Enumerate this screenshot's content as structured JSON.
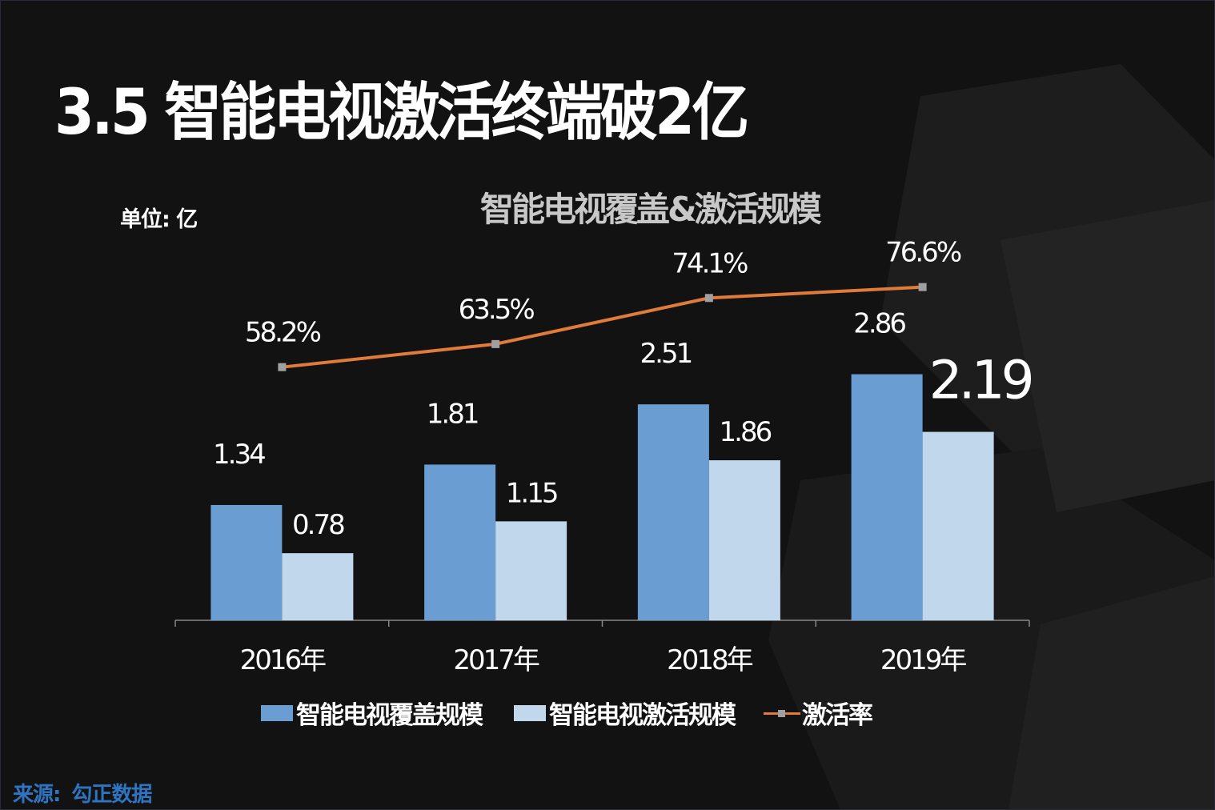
{
  "title": "3.5 智能电视激活终端破2亿",
  "unit_label": "单位: 亿",
  "source": {
    "label": "来源:",
    "value": "勾正数据"
  },
  "colors": {
    "coverage": "#6a9dd2",
    "activation": "#c0d7ec",
    "rate": "#e07b39",
    "rate_marker": "#a0a0a0",
    "background": "#121212",
    "source": "#2f74c0"
  },
  "chart_data": {
    "type": "bar+line",
    "title": "智能电视覆盖&激活规模",
    "categories": [
      "2016年",
      "2017年",
      "2018年",
      "2019年"
    ],
    "series": [
      {
        "name": "智能电视覆盖规模",
        "type": "bar",
        "values": [
          1.34,
          1.81,
          2.51,
          2.86
        ],
        "labels": [
          "1.34",
          "1.81",
          "2.51",
          "2.86"
        ]
      },
      {
        "name": "智能电视激活规模",
        "type": "bar",
        "values": [
          0.78,
          1.15,
          1.86,
          2.19
        ],
        "labels": [
          "0.78",
          "1.15",
          "1.86",
          "2.19"
        ]
      },
      {
        "name": "激活率",
        "type": "line",
        "axis": "secondary",
        "values": [
          58.2,
          63.5,
          74.1,
          76.6
        ],
        "labels": [
          "58.2%",
          "63.5%",
          "74.1%",
          "76.6%"
        ]
      }
    ],
    "highlight": "2.19",
    "legend": "bottom",
    "grid": false
  }
}
